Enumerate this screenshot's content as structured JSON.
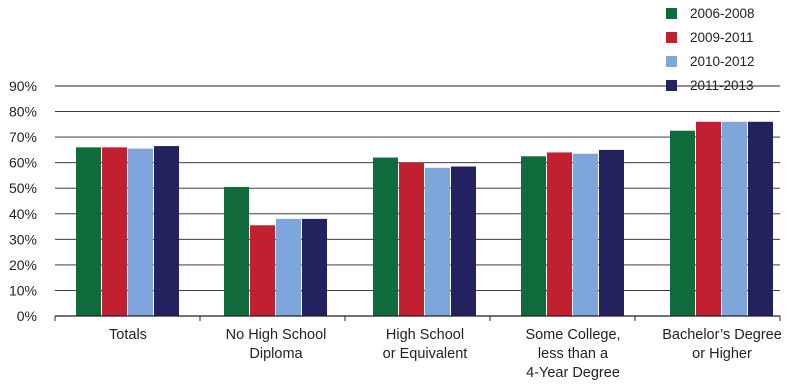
{
  "chart_data": {
    "type": "bar",
    "categories": [
      [
        "Totals"
      ],
      [
        "No High School",
        "Diploma"
      ],
      [
        "High School",
        "or Equivalent"
      ],
      [
        "Some College,",
        "less than a",
        "4-Year Degree"
      ],
      [
        "Bachelor’s Degree",
        "or Higher"
      ]
    ],
    "series": [
      {
        "name": "2006-2008",
        "color": "#0f6b3c",
        "values": [
          66.0,
          50.5,
          62.0,
          62.5,
          72.5
        ]
      },
      {
        "name": "2009-2011",
        "color": "#c0202f",
        "values": [
          66.0,
          35.5,
          60.0,
          64.0,
          76.0
        ]
      },
      {
        "name": "2010-2012",
        "color": "#7ea6dc",
        "values": [
          65.5,
          38.0,
          58.0,
          63.5,
          76.0
        ]
      },
      {
        "name": "2011-2013",
        "color": "#24215f",
        "values": [
          66.5,
          38.0,
          58.5,
          65.0,
          76.0
        ]
      }
    ],
    "y_ticks": [
      "0%",
      "10%",
      "20%",
      "30%",
      "40%",
      "50%",
      "60%",
      "70%",
      "80%",
      "90%"
    ],
    "ylim": [
      0,
      90
    ],
    "grid": true,
    "legend_position": "top-right",
    "title": "",
    "xlabel": "",
    "ylabel": ""
  }
}
